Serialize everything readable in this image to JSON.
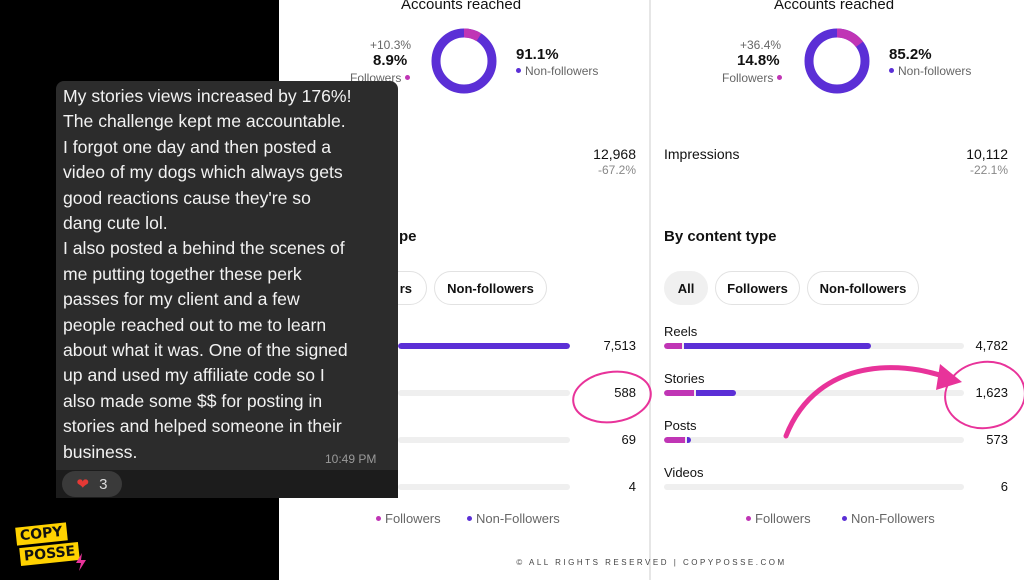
{
  "left_panel": {
    "accounts_reached_title": "Accounts reached",
    "followers": {
      "change": "+10.3%",
      "percent": "8.9%",
      "label": "Followers"
    },
    "non_followers": {
      "percent": "91.1%",
      "label": "Non-followers"
    },
    "impressions": {
      "value": "12,968",
      "change": "-67.2%"
    },
    "content_type_title_partial": "pe",
    "chips": {
      "followers_partial": "rs",
      "non_followers": "Non-followers"
    },
    "rows": [
      {
        "value": "7,513",
        "followers_fraction": 0.0,
        "total_fraction": 1.0
      },
      {
        "value": "588",
        "followers_fraction": 0.0,
        "total_fraction": 0.0
      },
      {
        "value": "69",
        "followers_fraction": 0.0,
        "total_fraction": 0.0
      },
      {
        "value": "4",
        "followers_fraction": 0.0,
        "total_fraction": 0.0
      }
    ],
    "legend": {
      "followers": "Followers",
      "non_followers": "Non-Followers"
    }
  },
  "right_panel": {
    "accounts_reached_title": "Accounts reached",
    "followers": {
      "change": "+36.4%",
      "percent": "14.8%",
      "label": "Followers"
    },
    "non_followers": {
      "percent": "85.2%",
      "label": "Non-followers"
    },
    "impressions": {
      "label": "Impressions",
      "value": "10,112",
      "change": "-22.1%"
    },
    "content_type_title": "By content type",
    "chips": {
      "all": "All",
      "followers": "Followers",
      "non_followers": "Non-followers"
    },
    "rows": [
      {
        "label": "Reels",
        "value": "4,782",
        "followers_fraction": 0.06,
        "total_fraction": 0.69
      },
      {
        "label": "Stories",
        "value": "1,623",
        "followers_fraction": 0.1,
        "total_fraction": 0.24
      },
      {
        "label": "Posts",
        "value": "573",
        "followers_fraction": 0.07,
        "total_fraction": 0.09
      },
      {
        "label": "Videos",
        "value": "6",
        "followers_fraction": 0.0,
        "total_fraction": 0.0
      }
    ],
    "legend": {
      "followers": "Followers",
      "non_followers": "Non-Followers"
    }
  },
  "chat": {
    "message": "My stories views increased by 176%!\nThe challenge kept me accountable.\nI forgot one day and then posted a\nvideo of my dogs which always gets\ngood reactions cause they're so\ndang cute lol.\nI also posted a behind the scenes of\nme putting together these perk\npasses for my client and a few\npeople reached out to me to learn\nabout what it was. One of the signed\nup and used my affiliate code so I\nalso made some $$ for posting in\nstories and helped someone in their\nbusiness.",
    "time": "10:49 PM",
    "reaction_count": "3"
  },
  "logo": {
    "line1": "COPY",
    "line2": "POSSE"
  },
  "footer": "© ALL RIGHTS RESERVED | COPYPOSSE.COM",
  "colors": {
    "followers": "#c035b5",
    "non_followers": "#5b2fd6",
    "annotation": "#e8339a"
  }
}
